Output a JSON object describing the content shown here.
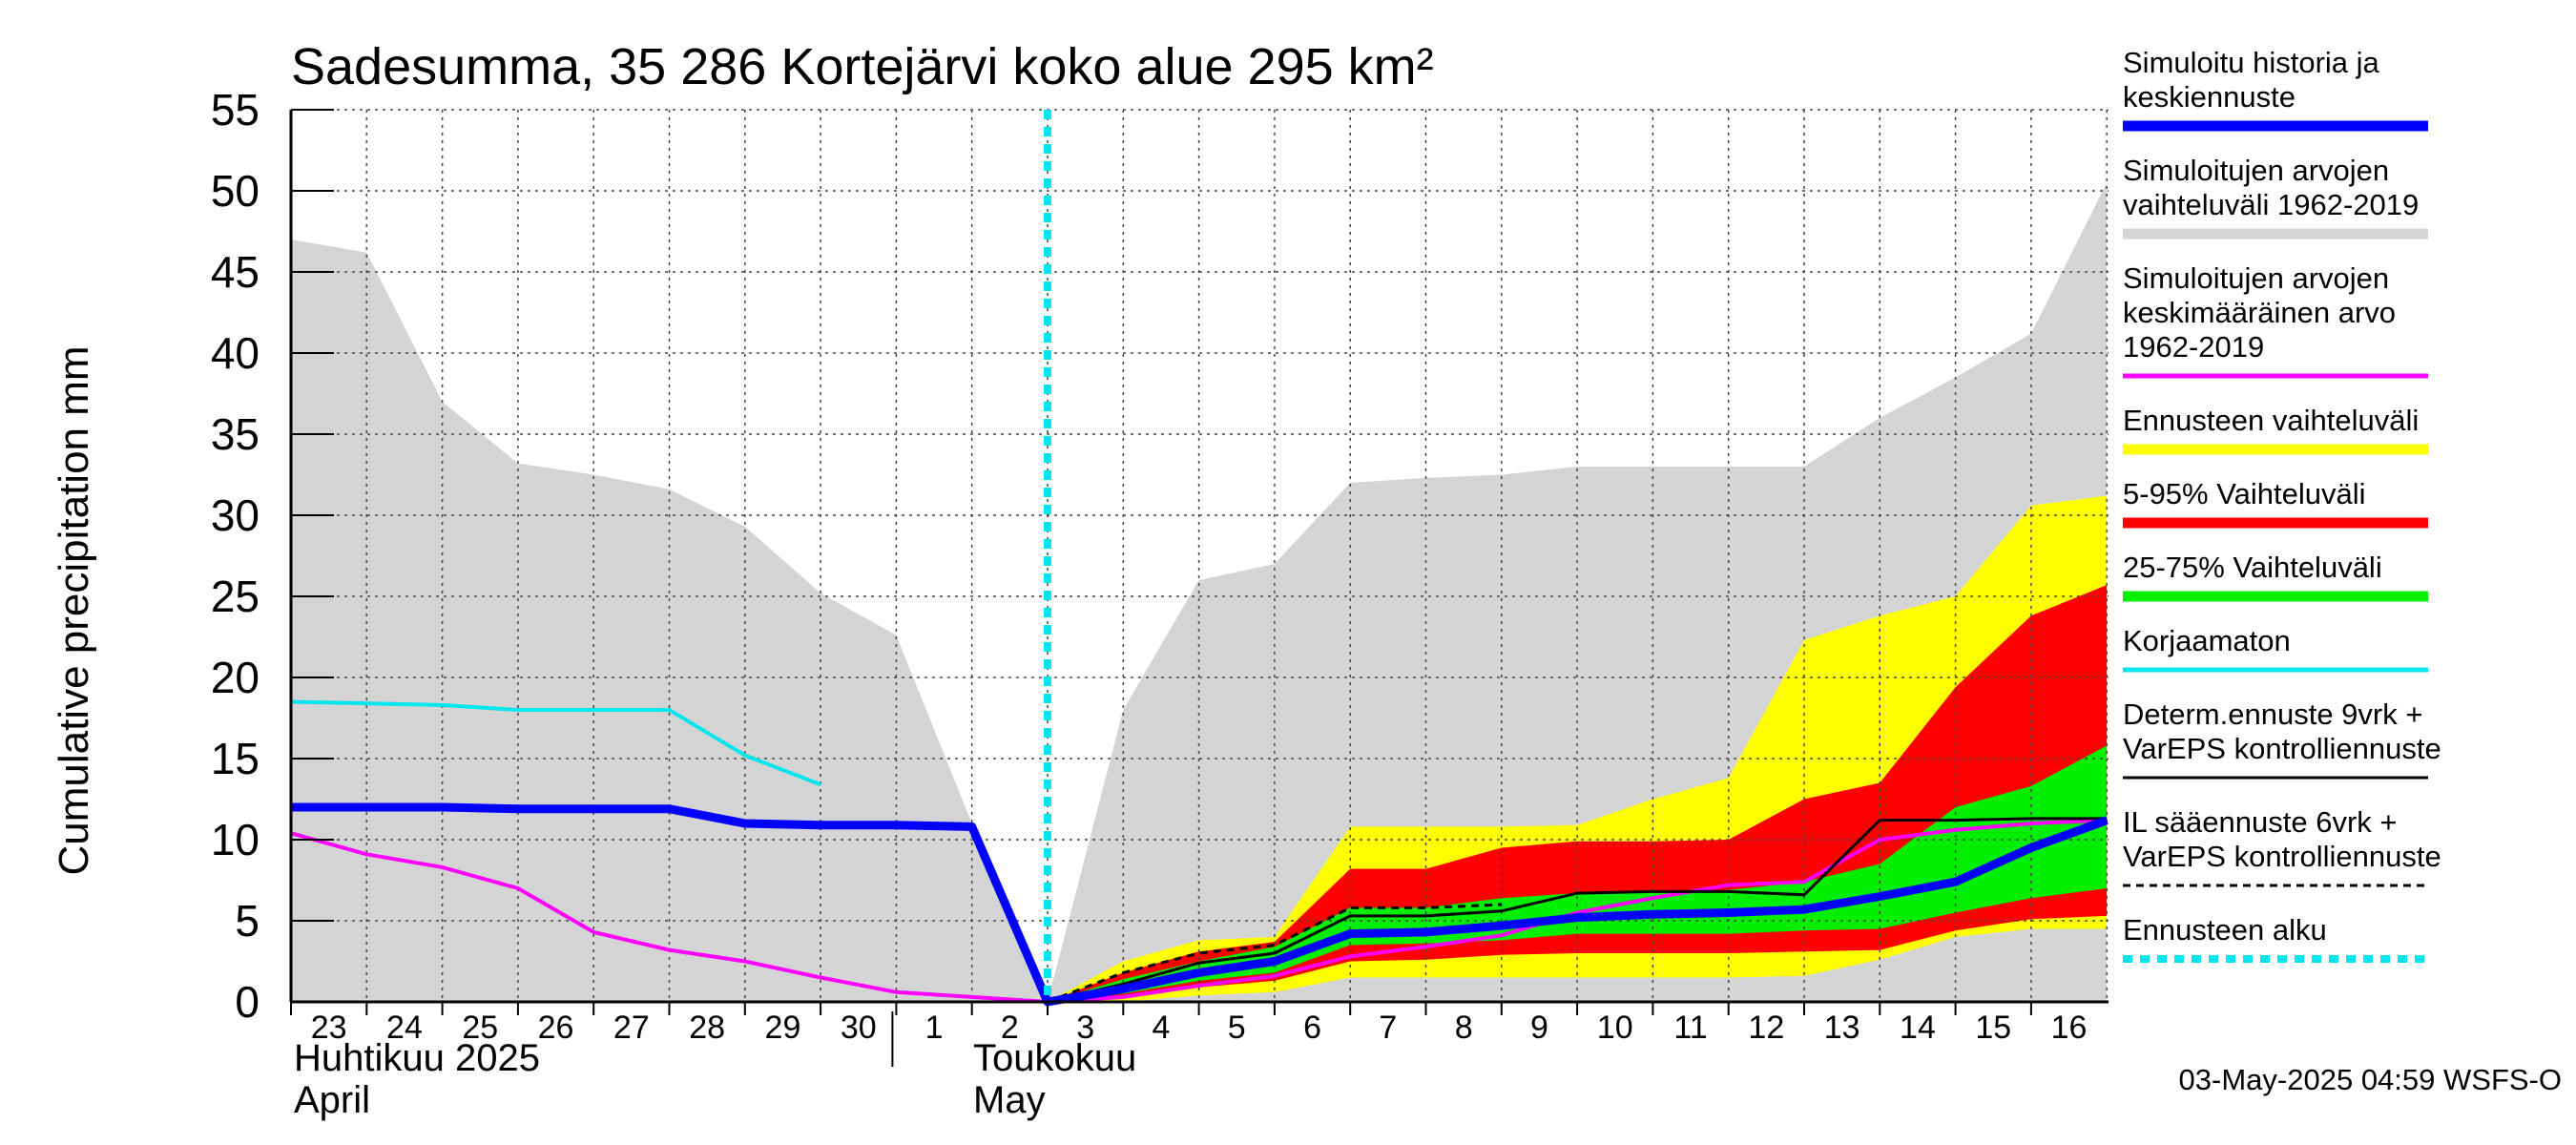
{
  "chart_data": {
    "type": "area",
    "title": "Sadesumma, 35 286 Kortejärvi koko alue 295 km²",
    "ylabel": "Cumulative precipitation   mm",
    "ylim": [
      0,
      55
    ],
    "yticks": [
      "0",
      "5",
      "10",
      "15",
      "20",
      "25",
      "30",
      "35",
      "40",
      "45",
      "50",
      "55"
    ],
    "x_day_labels": [
      "23",
      "24",
      "25",
      "26",
      "27",
      "28",
      "29",
      "30",
      "1",
      "2",
      "3",
      "4",
      "5",
      "6",
      "7",
      "8",
      "9",
      "10",
      "11",
      "12",
      "13",
      "14",
      "15",
      "16"
    ],
    "month_labels": {
      "april_fi": "Huhtikuu  2025",
      "april_en": "April",
      "may_fi": "Toukokuu",
      "may_en": "May"
    },
    "forecast_start_day": 10,
    "footer": "03-May-2025 04:59 WSFS-O",
    "legend": [
      {
        "key": "sim",
        "label_lines": [
          "Simuloitu historia ja",
          "keskiennuste"
        ],
        "color": "#0000ff",
        "style": "thick"
      },
      {
        "key": "range",
        "label_lines": [
          "Simuloitujen arvojen",
          "vaihteluväli 1962-2019"
        ],
        "color": "#d4d4d4",
        "style": "thick"
      },
      {
        "key": "mean",
        "label_lines": [
          "Simuloitujen arvojen",
          "keskimääräinen arvo",
          "   1962-2019"
        ],
        "color": "#ff00ff",
        "style": "medium"
      },
      {
        "key": "ens",
        "label_lines": [
          "Ennusteen vaihteluväli"
        ],
        "color": "#ffff00",
        "style": "thick"
      },
      {
        "key": "p5_95",
        "label_lines": [
          "5-95% Vaihteluväli"
        ],
        "color": "#ff0000",
        "style": "thick"
      },
      {
        "key": "p25_75",
        "label_lines": [
          "25-75% Vaihteluväli"
        ],
        "color": "#00ee00",
        "style": "thick"
      },
      {
        "key": "uncorr",
        "label_lines": [
          "Korjaamaton"
        ],
        "color": "#00e5ee",
        "style": "medium"
      },
      {
        "key": "determ",
        "label_lines": [
          "Determ.ennuste 9vrk +",
          "VarEPS kontrolliennuste"
        ],
        "color": "#000000",
        "style": "thin"
      },
      {
        "key": "il",
        "label_lines": [
          "IL sääennuste 6vrk  +",
          "  VarEPS kontrolliennuste"
        ],
        "color": "#000000",
        "style": "dashed"
      },
      {
        "key": "start",
        "label_lines": [
          "Ennusteen alku"
        ],
        "color": "#00e5ee",
        "style": "dotted"
      }
    ],
    "series": [
      {
        "name": "hist_range_upper",
        "x": [
          0,
          1,
          2,
          3,
          4,
          5,
          6,
          7,
          8,
          9,
          10,
          11,
          12,
          13,
          14,
          15,
          16,
          17,
          18,
          19,
          20,
          21,
          22,
          23,
          24
        ],
        "values": [
          47,
          46.2,
          37,
          33.2,
          32.5,
          31.6,
          29.3,
          25.2,
          22.6,
          11,
          0,
          18,
          26,
          27,
          32,
          32.3,
          32.5,
          33,
          33,
          33,
          33,
          36,
          38.5,
          41.2,
          50.5
        ]
      },
      {
        "name": "ens_upper",
        "x": [
          10,
          11,
          12,
          13,
          14,
          15,
          16,
          17,
          18,
          19,
          20,
          21,
          22,
          23,
          24
        ],
        "values": [
          0,
          2.5,
          3.8,
          4,
          10.8,
          10.8,
          10.8,
          10.9,
          12.5,
          13.8,
          22.3,
          23.8,
          25,
          30.6,
          31.2
        ]
      },
      {
        "name": "ens_lower",
        "x": [
          10,
          11,
          12,
          13,
          14,
          15,
          16,
          17,
          18,
          19,
          20,
          21,
          22,
          23,
          24
        ],
        "values": [
          0,
          0,
          0.4,
          0.6,
          1.5,
          1.5,
          1.5,
          1.5,
          1.5,
          1.5,
          1.6,
          2.6,
          4,
          4.5,
          4.5
        ]
      },
      {
        "name": "p95",
        "x": [
          10,
          11,
          12,
          13,
          14,
          15,
          16,
          17,
          18,
          19,
          20,
          21,
          22,
          23,
          24
        ],
        "values": [
          0,
          1.8,
          3.1,
          3.7,
          8.2,
          8.2,
          9.5,
          9.9,
          9.9,
          10,
          12.5,
          13.5,
          19.4,
          23.8,
          25.7
        ]
      },
      {
        "name": "p5",
        "x": [
          10,
          11,
          12,
          13,
          14,
          15,
          16,
          17,
          18,
          19,
          20,
          21,
          22,
          23,
          24
        ],
        "values": [
          0,
          0.2,
          0.9,
          1.3,
          2.5,
          2.6,
          2.9,
          3,
          3,
          3,
          3.1,
          3.2,
          4.4,
          5.1,
          5.3
        ]
      },
      {
        "name": "p75",
        "x": [
          10,
          11,
          12,
          13,
          14,
          15,
          16,
          17,
          18,
          19,
          20,
          21,
          22,
          23,
          24
        ],
        "values": [
          0,
          1.4,
          2.5,
          3.4,
          5.8,
          5.8,
          6.4,
          6.7,
          6.8,
          6.9,
          7.4,
          8.5,
          12,
          13.3,
          15.8
        ]
      },
      {
        "name": "p25",
        "x": [
          10,
          11,
          12,
          13,
          14,
          15,
          16,
          17,
          18,
          19,
          20,
          21,
          22,
          23,
          24
        ],
        "values": [
          0,
          0.5,
          1.3,
          1.8,
          3.5,
          3.6,
          3.8,
          4.2,
          4.2,
          4.2,
          4.4,
          4.5,
          5.5,
          6.4,
          7
        ]
      },
      {
        "name": "Simuloitu historia ja keskiennuste",
        "x": [
          0,
          1,
          2,
          3,
          4,
          5,
          6,
          7,
          8,
          9,
          10,
          11,
          12,
          13,
          14,
          15,
          16,
          17,
          18,
          19,
          20,
          21,
          22,
          23,
          24
        ],
        "values": [
          12,
          12,
          12,
          11.9,
          11.9,
          11.9,
          11,
          10.9,
          10.9,
          10.8,
          0,
          0.8,
          1.8,
          2.5,
          4.2,
          4.3,
          4.7,
          5.2,
          5.4,
          5.5,
          5.7,
          6.5,
          7.4,
          9.5,
          11.2
        ]
      },
      {
        "name": "Simuloitujen arvojen keskimääräinen arvo",
        "x": [
          0,
          1,
          2,
          3,
          4,
          5,
          6,
          7,
          8,
          9,
          10,
          11,
          12,
          13,
          14,
          15,
          16,
          17,
          18,
          19,
          20,
          21,
          22,
          23,
          24
        ],
        "values": [
          10.4,
          9.1,
          8.3,
          7,
          4.3,
          3.2,
          2.5,
          1.5,
          0.6,
          0.3,
          0,
          0.3,
          1,
          1.6,
          2.8,
          3.4,
          4.1,
          5.5,
          6.4,
          7.2,
          7.4,
          10,
          10.6,
          11,
          11.2
        ]
      },
      {
        "name": "Korjaamaton",
        "x": [
          0,
          1,
          2,
          3,
          4,
          5,
          6,
          7
        ],
        "values": [
          18.5,
          18.4,
          18.3,
          18,
          18,
          18,
          15.2,
          13.4
        ]
      },
      {
        "name": "Determ.ennuste 9vrk + VarEPS kontrolliennuste",
        "x": [
          10,
          11,
          12,
          13,
          14,
          15,
          16,
          17,
          18,
          19,
          20,
          21,
          22,
          23,
          24
        ],
        "values": [
          0,
          1.1,
          2.4,
          3,
          5.3,
          5.3,
          5.6,
          6.7,
          6.8,
          6.8,
          6.6,
          11.2,
          11.2,
          11.3,
          11.3
        ]
      },
      {
        "name": "IL sääennuste 6vrk + VarEPS kontrolliennuste",
        "x": [
          10,
          11,
          12,
          13,
          14,
          15,
          16
        ],
        "values": [
          0,
          1.8,
          3,
          3.5,
          5.8,
          5.8,
          6
        ]
      }
    ]
  }
}
